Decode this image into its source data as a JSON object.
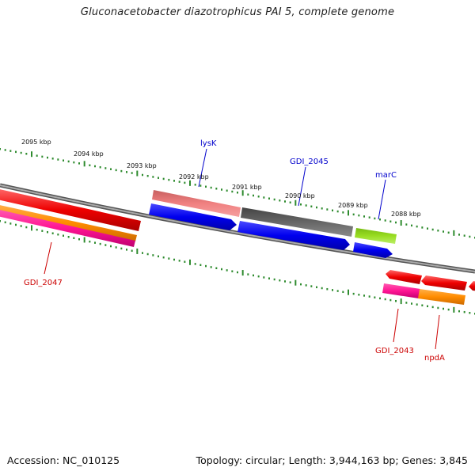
{
  "title": "Gluconacetobacter diazotrophicus PAI 5, complete genome",
  "footer": {
    "accession": "Accession: NC_010125",
    "summary": "Topology: circular; Length: 3,944,163 bp; Genes: 3,845"
  },
  "scale": {
    "tick_color": "#2e8b2e",
    "labels": [
      "2095 kbp",
      "2094 kbp",
      "2093 kbp",
      "2092 kbp",
      "2091 kbp",
      "2090 kbp",
      "2089 kbp",
      "2088 kbp"
    ]
  },
  "genes": [
    {
      "name": "lysK",
      "color": "#0000cc"
    },
    {
      "name": "GDI_2045",
      "color": "#0000cc"
    },
    {
      "name": "marC",
      "color": "#0000cc"
    },
    {
      "name": "GDI_2047",
      "color": "#cc0000"
    },
    {
      "name": "GDI_2043",
      "color": "#cc0000"
    },
    {
      "name": "npdA",
      "color": "#cc0000"
    }
  ],
  "feature_colors": {
    "cds_forward": "#0000ee",
    "cds_reverse": "#ee0000",
    "gene_pink": "#f08080",
    "gene_gray": "#666666",
    "gene_green": "#99dd22",
    "orange": "#ff8c00",
    "magenta": "#ff1493",
    "backbone": "#888888"
  }
}
